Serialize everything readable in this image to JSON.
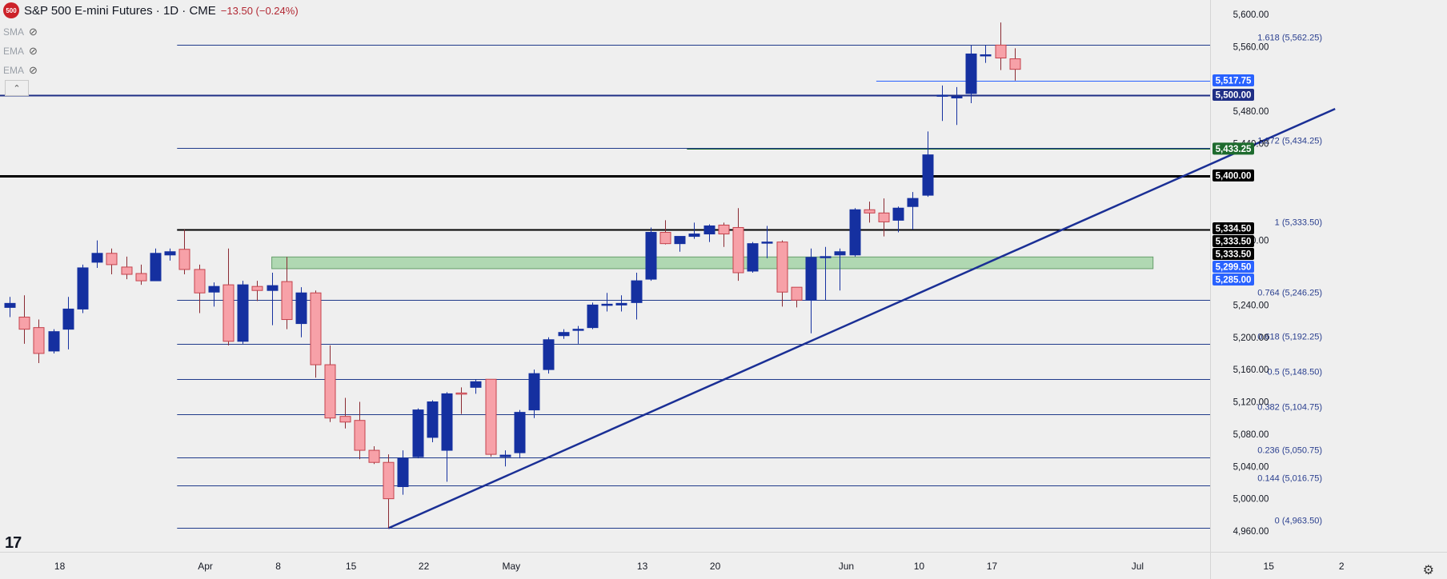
{
  "header": {
    "symbol_badge": "500",
    "title": "S&P 500 E-mini Futures · 1D · CME",
    "change": "−13.50 (−0.24%)"
  },
  "indicators": [
    {
      "label": "SMA",
      "icon": "eye-off-icon"
    },
    {
      "label": "EMA",
      "icon": "eye-off-icon"
    },
    {
      "label": "EMA",
      "icon": "eye-off-icon"
    }
  ],
  "collapse_glyph": "⌃",
  "tv_logo": "17",
  "settings_glyph": "⚙",
  "chart_data": {
    "type": "candlestick",
    "y_range": [
      4940,
      5610
    ],
    "y_ticks": [
      {
        "value": 5600,
        "label": "5,600.00"
      },
      {
        "value": 5560,
        "label": "5,560.00"
      },
      {
        "value": 5480,
        "label": "5,480.00"
      },
      {
        "value": 5440,
        "label": "5,440.00"
      },
      {
        "value": 5320,
        "label": "5,320.00"
      },
      {
        "value": 5240,
        "label": "5,240.00"
      },
      {
        "value": 5200,
        "label": "5,200.00"
      },
      {
        "value": 5160,
        "label": "5,160.00"
      },
      {
        "value": 5120,
        "label": "5,120.00"
      },
      {
        "value": 5080,
        "label": "5,080.00"
      },
      {
        "value": 5040,
        "label": "5,040.00"
      },
      {
        "value": 5000,
        "label": "5,000.00"
      },
      {
        "value": 4960,
        "label": "4,960.00"
      }
    ],
    "x_ticks": [
      {
        "index": 3,
        "label": "18"
      },
      {
        "index": 13,
        "label": "Apr"
      },
      {
        "index": 18,
        "label": "8"
      },
      {
        "index": 23,
        "label": "15"
      },
      {
        "index": 28,
        "label": "22"
      },
      {
        "index": 34,
        "label": "May"
      },
      {
        "index": 43,
        "label": "13"
      },
      {
        "index": 48,
        "label": "20"
      },
      {
        "index": 57,
        "label": "Jun"
      },
      {
        "index": 62,
        "label": "10"
      },
      {
        "index": 67,
        "label": "17"
      },
      {
        "index": 77,
        "label": "Jul"
      },
      {
        "index": 86,
        "label": "15"
      },
      {
        "index": 91,
        "label": "2"
      }
    ],
    "candles": [
      {
        "o": 5237,
        "h": 5250,
        "l": 5225,
        "c": 5242
      },
      {
        "o": 5225,
        "h": 5252,
        "l": 5192,
        "c": 5210
      },
      {
        "o": 5212,
        "h": 5222,
        "l": 5168,
        "c": 5180
      },
      {
        "o": 5183,
        "h": 5210,
        "l": 5180,
        "c": 5207
      },
      {
        "o": 5210,
        "h": 5250,
        "l": 5185,
        "c": 5235
      },
      {
        "o": 5235,
        "h": 5290,
        "l": 5230,
        "c": 5286
      },
      {
        "o": 5293,
        "h": 5320,
        "l": 5286,
        "c": 5304
      },
      {
        "o": 5304,
        "h": 5310,
        "l": 5278,
        "c": 5290
      },
      {
        "o": 5287,
        "h": 5300,
        "l": 5272,
        "c": 5278
      },
      {
        "o": 5279,
        "h": 5290,
        "l": 5265,
        "c": 5270
      },
      {
        "o": 5270,
        "h": 5310,
        "l": 5270,
        "c": 5304
      },
      {
        "o": 5302,
        "h": 5310,
        "l": 5295,
        "c": 5306
      },
      {
        "o": 5309,
        "h": 5333.5,
        "l": 5278,
        "c": 5284
      },
      {
        "o": 5284,
        "h": 5290,
        "l": 5230,
        "c": 5255
      },
      {
        "o": 5256,
        "h": 5268,
        "l": 5238,
        "c": 5263
      },
      {
        "o": 5265,
        "h": 5310,
        "l": 5190,
        "c": 5195
      },
      {
        "o": 5195,
        "h": 5270,
        "l": 5192,
        "c": 5265
      },
      {
        "o": 5263,
        "h": 5270,
        "l": 5245,
        "c": 5258
      },
      {
        "o": 5258,
        "h": 5280,
        "l": 5215,
        "c": 5264
      },
      {
        "o": 5269,
        "h": 5299.5,
        "l": 5210,
        "c": 5222
      },
      {
        "o": 5217,
        "h": 5262,
        "l": 5200,
        "c": 5255
      },
      {
        "o": 5255,
        "h": 5258,
        "l": 5150,
        "c": 5166
      },
      {
        "o": 5166,
        "h": 5190,
        "l": 5095,
        "c": 5100
      },
      {
        "o": 5102,
        "h": 5125,
        "l": 5087,
        "c": 5095
      },
      {
        "o": 5097,
        "h": 5120,
        "l": 5049,
        "c": 5060
      },
      {
        "o": 5060,
        "h": 5065,
        "l": 5043,
        "c": 5045
      },
      {
        "o": 5045,
        "h": 5055,
        "l": 4963.5,
        "c": 5000
      },
      {
        "o": 5015,
        "h": 5060,
        "l": 5005,
        "c": 5050
      },
      {
        "o": 5052,
        "h": 5112,
        "l": 5050,
        "c": 5110
      },
      {
        "o": 5076,
        "h": 5122,
        "l": 5070,
        "c": 5120
      },
      {
        "o": 5060,
        "h": 5132,
        "l": 5021,
        "c": 5130
      },
      {
        "o": 5131,
        "h": 5138,
        "l": 5105,
        "c": 5130
      },
      {
        "o": 5138,
        "h": 5148,
        "l": 5130,
        "c": 5145
      },
      {
        "o": 5148,
        "h": 5148,
        "l": 5052,
        "c": 5055
      },
      {
        "o": 5052,
        "h": 5060,
        "l": 5040,
        "c": 5054
      },
      {
        "o": 5057,
        "h": 5110,
        "l": 5050,
        "c": 5107
      },
      {
        "o": 5110,
        "h": 5160,
        "l": 5100,
        "c": 5155
      },
      {
        "o": 5160,
        "h": 5200,
        "l": 5155,
        "c": 5197
      },
      {
        "o": 5202,
        "h": 5210,
        "l": 5198,
        "c": 5206
      },
      {
        "o": 5210,
        "h": 5214,
        "l": 5192,
        "c": 5210
      },
      {
        "o": 5212,
        "h": 5243,
        "l": 5210,
        "c": 5240
      },
      {
        "o": 5240,
        "h": 5255,
        "l": 5232,
        "c": 5241
      },
      {
        "o": 5240,
        "h": 5252,
        "l": 5232,
        "c": 5242
      },
      {
        "o": 5243,
        "h": 5280,
        "l": 5222,
        "c": 5270
      },
      {
        "o": 5272,
        "h": 5336,
        "l": 5270,
        "c": 5330
      },
      {
        "o": 5330,
        "h": 5345,
        "l": 5315,
        "c": 5316
      },
      {
        "o": 5316,
        "h": 5325,
        "l": 5306,
        "c": 5325
      },
      {
        "o": 5325,
        "h": 5342,
        "l": 5322,
        "c": 5328
      },
      {
        "o": 5328,
        "h": 5340,
        "l": 5318,
        "c": 5338
      },
      {
        "o": 5339,
        "h": 5342,
        "l": 5312,
        "c": 5328
      },
      {
        "o": 5336,
        "h": 5360,
        "l": 5270,
        "c": 5280
      },
      {
        "o": 5282,
        "h": 5318,
        "l": 5280,
        "c": 5316
      },
      {
        "o": 5318,
        "h": 5338,
        "l": 5298,
        "c": 5318
      },
      {
        "o": 5318,
        "h": 5320,
        "l": 5238,
        "c": 5256
      },
      {
        "o": 5262,
        "h": 5262,
        "l": 5237,
        "c": 5246
      },
      {
        "o": 5246,
        "h": 5310,
        "l": 5205,
        "c": 5299
      },
      {
        "o": 5299,
        "h": 5312,
        "l": 5246,
        "c": 5300
      },
      {
        "o": 5302,
        "h": 5310,
        "l": 5258,
        "c": 5306
      },
      {
        "o": 5302,
        "h": 5360,
        "l": 5300,
        "c": 5358
      },
      {
        "o": 5358,
        "h": 5368,
        "l": 5342,
        "c": 5354
      },
      {
        "o": 5354,
        "h": 5372,
        "l": 5325,
        "c": 5343
      },
      {
        "o": 5345,
        "h": 5362,
        "l": 5330,
        "c": 5360
      },
      {
        "o": 5362,
        "h": 5380,
        "l": 5333.5,
        "c": 5372
      },
      {
        "o": 5376,
        "h": 5455,
        "l": 5374,
        "c": 5426
      },
      {
        "o": 5500,
        "h": 5512,
        "l": 5468,
        "c": 5500
      },
      {
        "o": 5498,
        "h": 5510,
        "l": 5463,
        "c": 5498
      },
      {
        "o": 5502,
        "h": 5562,
        "l": 5490,
        "c": 5551
      },
      {
        "o": 5550,
        "h": 5562,
        "l": 5540,
        "c": 5550
      },
      {
        "o": 5562,
        "h": 5590,
        "l": 5531,
        "c": 5546
      },
      {
        "o": 5545,
        "h": 5558,
        "l": 5518,
        "c": 5532
      }
    ],
    "fib_levels": [
      {
        "value": 5562.25,
        "label": "1.618 (5,562.25)"
      },
      {
        "value": 5434.25,
        "label": "1.272 (5,434.25)"
      },
      {
        "value": 5333.5,
        "label": "1 (5,333.50)"
      },
      {
        "value": 5246.25,
        "label": "0.764 (5,246.25)"
      },
      {
        "value": 5192.25,
        "label": "0.618 (5,192.25)"
      },
      {
        "value": 5148.5,
        "label": "0.5 (5,148.50)"
      },
      {
        "value": 5104.75,
        "label": "0.382 (5,104.75)"
      },
      {
        "value": 5050.75,
        "label": "0.236 (5,050.75)"
      },
      {
        "value": 5016.75,
        "label": "0.144 (5,016.75)"
      },
      {
        "value": 4963.5,
        "label": "0 (4,963.50)"
      }
    ],
    "price_tags": [
      {
        "value": 5517.75,
        "label": "5,517.75",
        "color": "#2962ff"
      },
      {
        "value": 5500,
        "label": "5,500.00",
        "color": "#1f2f86"
      },
      {
        "value": 5433.25,
        "label": "5,433.25",
        "color": "#1e6b2e"
      },
      {
        "value": 5400,
        "label": "5,400.00",
        "color": "#000000"
      },
      {
        "value": 5334.5,
        "label": "5,334.50",
        "color": "#000000"
      },
      {
        "value": 5333.5,
        "label": "5,333.50",
        "color": "#000000"
      },
      {
        "value": 5333.5,
        "label": "5,333.50",
        "color": "#000000"
      },
      {
        "value": 5299.5,
        "label": "5,299.50",
        "color": "#2962ff"
      },
      {
        "value": 5285,
        "label": "5,285.00",
        "color": "#2962ff"
      }
    ],
    "zone": {
      "from": 5285,
      "to": 5299.5,
      "color": "#a6d5a8"
    },
    "trendline": {
      "from": {
        "index": 26,
        "value": 4963.5
      },
      "to": {
        "index": 91,
        "value": 5483
      }
    },
    "colors": {
      "up": "#1530a0",
      "down": "#f7a1a8",
      "down_border": "#c5424c",
      "fib": "#1f3a8a",
      "trend": "#1a2f95"
    }
  }
}
